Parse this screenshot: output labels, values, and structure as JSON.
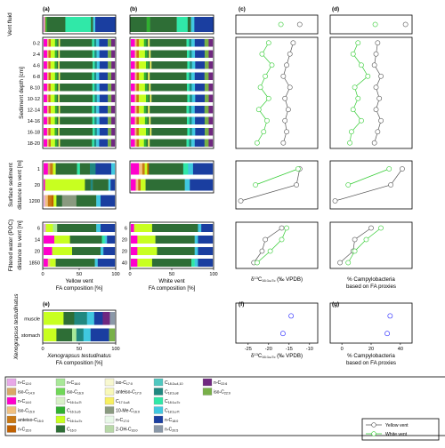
{
  "chart_data": {
    "type": "bar",
    "panel_labels": [
      "(a)",
      "(b)",
      "(c)",
      "(d)",
      "(e)",
      "(f)",
      "(g)"
    ],
    "row_groups": {
      "vent_fluid": "Vent fluid",
      "sediment_depth": [
        "Sediment depth [cm]"
      ],
      "surface_sediment": [
        "Surface sediment",
        "distance to vent [m]"
      ],
      "filtered_water": [
        "Filtered water (POC)",
        "distance to vent [m]"
      ],
      "xenograpsus": [
        "Xenograpsus testudinatus"
      ]
    },
    "sediment_depths": [
      "0-2",
      "2-4",
      "4-6",
      "6-8",
      "8-10",
      "10-12",
      "12-14",
      "14-16",
      "16-18",
      "18-20"
    ],
    "surface_distances_yellow": [
      "1",
      "20",
      "1200"
    ],
    "surface_distances_white": [
      "1",
      "20"
    ],
    "water_distances_yellow": [
      "6",
      "14",
      "20",
      "1850"
    ],
    "water_distances_white": [
      "6",
      "20",
      "20",
      "40"
    ],
    "tissues": [
      "muscle",
      "stomach"
    ],
    "x_ticks_pct": [
      "0",
      "50",
      "100"
    ],
    "x_labels": {
      "a": [
        "Yellow vent",
        "FA composition [%]"
      ],
      "b": [
        "White vent",
        "FA composition [%]"
      ],
      "c": [
        "δ13C16:1ω7c (‰ VPDB)"
      ],
      "d": [
        "% Campylobacteria",
        "based on FA proxies"
      ],
      "e": [
        "Xenograpsus testudinatus",
        "FA composition [%]"
      ],
      "f": [
        "δ13C16:1ω7c (‰ VPDB)"
      ],
      "g": [
        "% Campylobacteria",
        "based on FA proxies"
      ]
    },
    "f_ticks": [
      "-25",
      "-20",
      "-15",
      "-10"
    ],
    "g_ticks": [
      "0",
      "20",
      "40"
    ],
    "series": [
      {
        "name": "Yellow vent",
        "color": "#555555"
      },
      {
        "name": "White vent",
        "color": "#33cc33"
      }
    ],
    "lines": {
      "c_vent": {
        "yellow": [
          0.78
        ],
        "white": [
          0.55
        ]
      },
      "d_vent": {
        "yellow": [
          0.92
        ],
        "white": [
          0.55
        ]
      },
      "c_sed": {
        "yellow": [
          0.7,
          0.66,
          0.62,
          0.58,
          0.66,
          0.6,
          0.64,
          0.6,
          0.62,
          0.58
        ],
        "white": [
          0.4,
          0.32,
          0.44,
          0.36,
          0.3,
          0.4,
          0.28,
          0.38,
          0.34,
          0.26
        ]
      },
      "d_sed": {
        "yellow": [
          0.58,
          0.56,
          0.54,
          0.62,
          0.56,
          0.6,
          0.56,
          0.62,
          0.58,
          0.54
        ],
        "white": [
          0.34,
          0.28,
          0.38,
          0.46,
          0.3,
          0.34,
          0.28,
          0.38,
          0.26,
          0.24
        ]
      },
      "c_surf": {
        "yellow": [
          0.78,
          0.74,
          0.06
        ],
        "white": [
          0.76,
          0.24
        ]
      },
      "d_surf": {
        "yellow": [
          0.88,
          0.74,
          0.06
        ],
        "white": [
          0.72,
          0.22
        ]
      },
      "c_water": {
        "yellow": [
          0.56,
          0.36,
          0.32,
          0.22
        ],
        "white": [
          0.62,
          0.56,
          0.42,
          0.26
        ]
      },
      "d_water": {
        "yellow": [
          0.5,
          0.3,
          0.28,
          0.12
        ],
        "white": [
          0.62,
          0.44,
          0.3,
          0.22
        ]
      }
    },
    "xeno_points": {
      "f": [
        {
          "tissue": "muscle",
          "x": -14.5
        },
        {
          "tissue": "stomach",
          "x": -16.5
        }
      ],
      "g": [
        {
          "tissue": "muscle",
          "x": 33
        },
        {
          "tissue": "stomach",
          "x": 31
        }
      ]
    },
    "fa_compounds": [
      {
        "name": "n-C12:0",
        "color": "#e8a8e8"
      },
      {
        "name": "iso-C14:0",
        "color": "#d8a868"
      },
      {
        "name": "n-C14:0",
        "color": "#ff00cc"
      },
      {
        "name": "iso-C15:0",
        "color": "#f0c080"
      },
      {
        "name": "anteiso-C15:0",
        "color": "#c87814"
      },
      {
        "name": "n-C15:0",
        "color": "#c06000"
      },
      {
        "name": "n-C16:0",
        "color": "#a8e898"
      },
      {
        "name": "iso-C16:0",
        "color": "#70d858"
      },
      {
        "name": "C16:1ω7t",
        "color": "#d8f0c8"
      },
      {
        "name": "C16:1ω5",
        "color": "#30b030"
      },
      {
        "name": "C16:1ω7c",
        "color": "#c8ff20"
      },
      {
        "name": "C16:0",
        "color": "#2e6e36"
      },
      {
        "name": "iso-C17:0",
        "color": "#f8f8d0"
      },
      {
        "name": "anteiso-C17:0",
        "color": "#f8f8b8"
      },
      {
        "name": "C17:1ω8",
        "color": "#f8f060"
      },
      {
        "name": "10-Me-C16:0",
        "color": "#8a9a80"
      },
      {
        "name": "n-C17:0",
        "color": "#e8f8e8"
      },
      {
        "name": "2-OH-C16:0",
        "color": "#b8d8a8"
      },
      {
        "name": "C18:2ω4,10",
        "color": "#50c8c0"
      },
      {
        "name": "C18:1ω8",
        "color": "#208880"
      },
      {
        "name": "C18:1ω7c",
        "color": "#30e8a8"
      },
      {
        "name": "C18:1ω7t",
        "color": "#40c8e0"
      },
      {
        "name": "n-C18:0",
        "color": "#1a3ea0"
      },
      {
        "name": "n-C20:5",
        "color": "#8a98a8"
      },
      {
        "name": "n-C22:6",
        "color": "#702880"
      },
      {
        "name": "iso-C22:0",
        "color": "#78b048"
      }
    ],
    "legend_series": [
      "Yellow vent",
      "White vent"
    ]
  }
}
